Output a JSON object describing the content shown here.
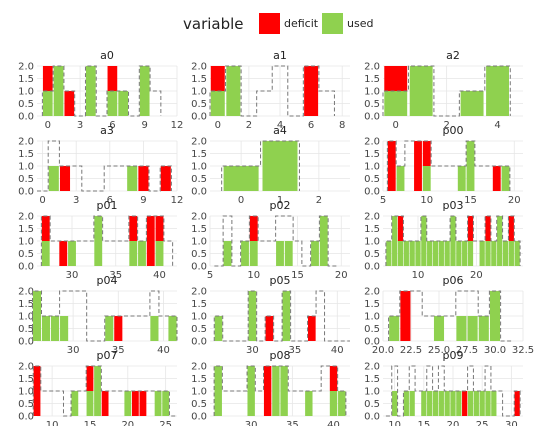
{
  "legend": {
    "title": "variable",
    "items": [
      {
        "label": "deficit",
        "color": "#ff0000"
      },
      {
        "label": "used",
        "color": "#8fd14f"
      }
    ],
    "placement": "top"
  },
  "colors": {
    "deficit": "#ff0000",
    "used": "#8fd14f",
    "capacity_line": "#777777"
  },
  "chart_data": [
    {
      "type": "bar",
      "title": "a0",
      "xlim": [
        -1,
        12
      ],
      "ylim": [
        0,
        2
      ],
      "yticks": [
        0,
        0.5,
        1,
        1.5,
        2
      ],
      "ytick_labels": [
        "0.0",
        "0.5",
        "1.0",
        "1.5",
        "2.0"
      ],
      "xticks": [
        0,
        3,
        6,
        9,
        12
      ],
      "xtick_labels": [
        "0",
        "3",
        "6",
        "9",
        "12"
      ],
      "x": [
        0,
        1,
        2,
        3,
        4,
        5,
        6,
        7,
        8,
        9,
        10
      ],
      "used": [
        1,
        2,
        0,
        0,
        2,
        0,
        1,
        1,
        0,
        2,
        0
      ],
      "deficit": [
        1,
        0,
        1,
        0,
        0,
        0,
        1,
        0,
        0,
        0,
        0
      ],
      "capacity": [
        1,
        2,
        1,
        0,
        2,
        0,
        1,
        1,
        0,
        2,
        1
      ]
    },
    {
      "type": "bar",
      "title": "a1",
      "xlim": [
        -0.5,
        8.5
      ],
      "ylim": [
        0,
        2
      ],
      "yticks": [
        0,
        0.5,
        1,
        1.5,
        2
      ],
      "ytick_labels": [
        "0.0",
        "0.5",
        "1.0",
        "1.5",
        "2.0"
      ],
      "xticks": [
        0,
        2,
        4,
        6,
        8
      ],
      "xtick_labels": [
        "0",
        "2",
        "4",
        "6",
        "8"
      ],
      "x": [
        0,
        1,
        2,
        3,
        4,
        5,
        6,
        7
      ],
      "used": [
        1,
        2,
        0,
        0,
        0,
        0,
        0,
        0
      ],
      "deficit": [
        1,
        0,
        0,
        0,
        0,
        0,
        2,
        0
      ],
      "capacity": [
        1,
        2,
        0,
        1,
        2,
        0,
        2,
        1
      ]
    },
    {
      "type": "bar",
      "title": "a2",
      "xlim": [
        -0.5,
        5
      ],
      "ylim": [
        0,
        2
      ],
      "yticks": [
        0,
        0.5,
        1,
        1.5,
        2
      ],
      "ytick_labels": [
        "0.0",
        "0.5",
        "1.0",
        "1.5",
        "2.0"
      ],
      "xticks": [
        0,
        2,
        4
      ],
      "xtick_labels": [
        "0",
        "2",
        "4"
      ],
      "x": [
        0,
        1,
        2,
        3,
        4
      ],
      "used": [
        1,
        2,
        0,
        1,
        2
      ],
      "deficit": [
        1,
        0,
        0,
        0,
        0
      ],
      "capacity": [
        1,
        2,
        0,
        1,
        2
      ]
    },
    {
      "type": "bar",
      "title": "a3",
      "xlim": [
        -0.5,
        12
      ],
      "ylim": [
        0,
        2
      ],
      "yticks": [
        0,
        0.5,
        1,
        1.5,
        2
      ],
      "ytick_labels": [
        "0.0",
        "0.5",
        "1.0",
        "1.5",
        "2.0"
      ],
      "xticks": [
        0,
        3,
        6,
        9,
        12
      ],
      "xtick_labels": [
        "0",
        "3",
        "6",
        "9",
        "12"
      ],
      "x": [
        0,
        1,
        2,
        3,
        4,
        5,
        6,
        7,
        8,
        9,
        10,
        11
      ],
      "used": [
        0,
        1,
        0,
        0,
        0,
        0,
        0,
        0,
        1,
        0,
        0,
        0
      ],
      "deficit": [
        0,
        0,
        1,
        0,
        0,
        0,
        0,
        0,
        0,
        1,
        0,
        1
      ],
      "capacity": [
        0,
        2,
        1,
        1,
        0,
        0,
        1,
        1,
        1,
        1,
        0,
        1
      ]
    },
    {
      "type": "bar",
      "title": "a4",
      "xlim": [
        -0.8,
        2.8
      ],
      "ylim": [
        0,
        2
      ],
      "yticks": [
        0,
        0.5,
        1,
        1.5,
        2
      ],
      "ytick_labels": [
        "0.0",
        "0.5",
        "1.0",
        "1.5",
        "2.0"
      ],
      "xticks": [
        0,
        1,
        2
      ],
      "xtick_labels": [
        "0",
        "1",
        "2"
      ],
      "x": [
        0,
        1
      ],
      "used": [
        1,
        2
      ],
      "deficit": [
        0,
        0
      ],
      "capacity": [
        1,
        2
      ]
    },
    {
      "type": "bar",
      "title": "p00",
      "xlim": [
        5,
        21
      ],
      "ylim": [
        0,
        2
      ],
      "yticks": [
        0,
        0.5,
        1,
        1.5,
        2
      ],
      "ytick_labels": [
        "0.0",
        "0.5",
        "1.0",
        "1.5",
        "2.0"
      ],
      "xticks": [
        5,
        10,
        15,
        20
      ],
      "xtick_labels": [
        "5",
        "10",
        "15",
        "20"
      ],
      "x": [
        6,
        7,
        8,
        9,
        10,
        11,
        12,
        13,
        14,
        15,
        16,
        17,
        18,
        19
      ],
      "used": [
        0,
        1,
        0,
        0,
        1,
        0,
        0,
        0,
        1,
        2,
        0,
        0,
        0,
        1
      ],
      "deficit": [
        2,
        0,
        0,
        2,
        1,
        0,
        0,
        0,
        0,
        0,
        0,
        0,
        1,
        0
      ],
      "capacity": [
        2,
        1,
        2,
        2,
        2,
        1,
        1,
        1,
        1,
        2,
        1,
        1,
        1,
        1
      ]
    },
    {
      "type": "bar",
      "title": "p01",
      "xlim": [
        26,
        42
      ],
      "ylim": [
        0,
        2
      ],
      "yticks": [
        0,
        0.5,
        1,
        1.5,
        2
      ],
      "ytick_labels": [
        "0.0",
        "0.5",
        "1.0",
        "1.5",
        "2.0"
      ],
      "xticks": [
        30,
        35,
        40
      ],
      "xtick_labels": [
        "30",
        "35",
        "40"
      ],
      "x": [
        27,
        28,
        29,
        30,
        31,
        32,
        33,
        34,
        35,
        36,
        37,
        38,
        39,
        40,
        41
      ],
      "used": [
        1,
        0,
        0,
        1,
        0,
        0,
        2,
        0,
        0,
        0,
        1,
        1,
        0,
        1,
        0
      ],
      "deficit": [
        1,
        0,
        1,
        0,
        0,
        0,
        0,
        0,
        0,
        0,
        1,
        0,
        2,
        1,
        0
      ],
      "capacity": [
        2,
        1,
        1,
        1,
        1,
        1,
        2,
        1,
        1,
        1,
        2,
        1,
        2,
        2,
        1
      ]
    },
    {
      "type": "bar",
      "title": "p02",
      "xlim": [
        5,
        21
      ],
      "ylim": [
        0,
        2
      ],
      "yticks": [
        0,
        0.5,
        1,
        1.5,
        2
      ],
      "ytick_labels": [
        "0.0",
        "0.5",
        "1.0",
        "1.5",
        "2.0"
      ],
      "xticks": [
        5,
        10,
        15,
        20
      ],
      "xtick_labels": [
        "5",
        "10",
        "15",
        "20"
      ],
      "x": [
        6,
        7,
        8,
        9,
        10,
        11,
        12,
        13,
        14,
        15,
        16,
        17,
        18,
        19
      ],
      "used": [
        0,
        1,
        0,
        1,
        1,
        0,
        0,
        1,
        1,
        0,
        0,
        1,
        2,
        0
      ],
      "deficit": [
        0,
        0,
        0,
        0,
        1,
        0,
        0,
        0,
        0,
        0,
        0,
        0,
        0,
        0
      ],
      "capacity": [
        0,
        2,
        0,
        1,
        2,
        1,
        1,
        2,
        2,
        1,
        0,
        1,
        2,
        0
      ]
    },
    {
      "type": "bar",
      "title": "p03",
      "xlim": [
        4,
        28
      ],
      "ylim": [
        0,
        2
      ],
      "yticks": [
        0,
        0.5,
        1,
        1.5,
        2
      ],
      "ytick_labels": [
        "0.0",
        "0.5",
        "1.0",
        "1.5",
        "2.0"
      ],
      "xticks": [
        10,
        20
      ],
      "xtick_labels": [
        "10",
        "20"
      ],
      "x": [
        5,
        6,
        7,
        8,
        9,
        10,
        11,
        12,
        13,
        14,
        15,
        16,
        17,
        18,
        19,
        20,
        21,
        22,
        23,
        24,
        25,
        26,
        27
      ],
      "used": [
        1,
        2,
        1,
        1,
        1,
        1,
        2,
        1,
        1,
        1,
        1,
        2,
        1,
        1,
        1,
        0,
        1,
        1,
        1,
        2,
        1,
        1,
        1
      ],
      "deficit": [
        0,
        0,
        1,
        0,
        0,
        0,
        0,
        0,
        0,
        0,
        0,
        0,
        0,
        0,
        1,
        0,
        0,
        1,
        0,
        0,
        0,
        1,
        0
      ],
      "capacity": [
        1,
        2,
        2,
        1,
        1,
        1,
        2,
        1,
        1,
        1,
        1,
        2,
        1,
        1,
        2,
        1,
        1,
        2,
        1,
        2,
        1,
        2,
        1
      ]
    },
    {
      "type": "bar",
      "title": "p04",
      "xlim": [
        26,
        41.5
      ],
      "ylim": [
        0,
        2
      ],
      "yticks": [
        0,
        0.5,
        1,
        1.5,
        2
      ],
      "ytick_labels": [
        "0.0",
        "0.5",
        "1.0",
        "1.5",
        "2.0"
      ],
      "xticks": [
        30,
        35,
        40
      ],
      "xtick_labels": [
        "30",
        "35",
        "40"
      ],
      "x": [
        26,
        27,
        28,
        29,
        30,
        31,
        32,
        33,
        34,
        35,
        36,
        37,
        38,
        39,
        40,
        41
      ],
      "used": [
        2,
        1,
        1,
        1,
        0,
        0,
        0,
        0,
        1,
        0,
        0,
        0,
        0,
        1,
        0,
        1
      ],
      "deficit": [
        0,
        0,
        0,
        0,
        0,
        0,
        0,
        0,
        0,
        1,
        0,
        0,
        0,
        0,
        0,
        0
      ],
      "capacity": [
        2,
        1,
        1,
        2,
        2,
        2,
        0,
        0,
        1,
        1,
        1,
        1,
        1,
        2,
        1,
        1
      ]
    },
    {
      "type": "bar",
      "title": "p05",
      "xlim": [
        25,
        41.5
      ],
      "ylim": [
        0,
        2
      ],
      "yticks": [
        0,
        0.5,
        1,
        1.5,
        2
      ],
      "ytick_labels": [
        "0.0",
        "0.5",
        "1.0",
        "1.5",
        "2.0"
      ],
      "xticks": [
        30,
        35,
        40
      ],
      "xtick_labels": [
        "30",
        "35",
        "40"
      ],
      "x": [
        26,
        27,
        28,
        29,
        30,
        31,
        32,
        33,
        34,
        35,
        36,
        37,
        38,
        39,
        40,
        41
      ],
      "used": [
        1,
        0,
        0,
        0,
        2,
        0,
        0,
        0,
        2,
        0,
        0,
        0,
        0,
        0,
        0,
        0
      ],
      "deficit": [
        0,
        0,
        0,
        0,
        0,
        0,
        1,
        0,
        0,
        0,
        0,
        1,
        0,
        0,
        0,
        0
      ],
      "capacity": [
        1,
        0,
        0,
        0,
        2,
        0,
        1,
        0,
        2,
        0,
        0,
        1,
        2,
        0,
        0,
        0
      ]
    },
    {
      "type": "bar",
      "title": "p06",
      "xlim": [
        20,
        32.5
      ],
      "ylim": [
        0,
        2
      ],
      "yticks": [
        0,
        0.5,
        1,
        1.5,
        2
      ],
      "ytick_labels": [
        "0.0",
        "0.5",
        "1.0",
        "1.5",
        "2.0"
      ],
      "xticks": [
        20,
        22.5,
        25,
        27.5,
        30,
        32.5
      ],
      "xtick_labels": [
        "20.0",
        "22.5",
        "25.0",
        "27.5",
        "30.0",
        "32.5"
      ],
      "x": [
        21,
        22,
        23,
        24,
        25,
        26,
        27,
        28,
        29,
        30,
        31
      ],
      "used": [
        1,
        0,
        0,
        0,
        1,
        0,
        1,
        1,
        1,
        2,
        0
      ],
      "deficit": [
        0,
        2,
        0,
        0,
        0,
        0,
        0,
        0,
        0,
        0,
        0
      ],
      "capacity": [
        1,
        2,
        2,
        1,
        1,
        1,
        2,
        2,
        1,
        2,
        0
      ]
    },
    {
      "type": "bar",
      "title": "p07",
      "xlim": [
        8,
        26.5
      ],
      "ylim": [
        0,
        2
      ],
      "yticks": [
        0,
        0.5,
        1,
        1.5,
        2
      ],
      "ytick_labels": [
        "0.0",
        "0.5",
        "1.0",
        "1.5",
        "2.0"
      ],
      "xticks": [
        10,
        15,
        20,
        25
      ],
      "xtick_labels": [
        "10",
        "15",
        "20",
        "25"
      ],
      "x": [
        8,
        9,
        10,
        11,
        12,
        13,
        14,
        15,
        16,
        17,
        18,
        19,
        20,
        21,
        22,
        23,
        24,
        25,
        26
      ],
      "used": [
        0,
        0,
        0,
        0,
        0,
        1,
        0,
        1,
        2,
        0,
        0,
        0,
        1,
        0,
        0,
        0,
        1,
        1,
        0
      ],
      "deficit": [
        2,
        0,
        0,
        0,
        0,
        0,
        0,
        1,
        0,
        1,
        0,
        0,
        0,
        1,
        1,
        0,
        0,
        0,
        0
      ],
      "capacity": [
        2,
        1,
        1,
        1,
        0,
        1,
        1,
        2,
        2,
        1,
        1,
        1,
        1,
        1,
        1,
        1,
        1,
        1,
        0
      ]
    },
    {
      "type": "bar",
      "title": "p08",
      "xlim": [
        25,
        42
      ],
      "ylim": [
        0,
        2
      ],
      "yticks": [
        0,
        0.5,
        1,
        1.5,
        2
      ],
      "ytick_labels": [
        "0.0",
        "0.5",
        "1.0",
        "1.5",
        "2.0"
      ],
      "xticks": [
        30,
        35,
        40
      ],
      "xtick_labels": [
        "30",
        "35",
        "40"
      ],
      "x": [
        26,
        27,
        28,
        29,
        30,
        31,
        32,
        33,
        34,
        35,
        36,
        37,
        38,
        39,
        40,
        41
      ],
      "used": [
        2,
        0,
        0,
        0,
        2,
        0,
        0,
        2,
        2,
        0,
        0,
        1,
        0,
        0,
        1,
        1
      ],
      "deficit": [
        0,
        0,
        0,
        0,
        0,
        0,
        2,
        0,
        0,
        0,
        0,
        0,
        0,
        0,
        1,
        0
      ],
      "capacity": [
        2,
        1,
        1,
        1,
        2,
        1,
        2,
        2,
        2,
        1,
        1,
        1,
        1,
        2,
        2,
        1
      ]
    },
    {
      "type": "bar",
      "title": "p09",
      "xlim": [
        8,
        32
      ],
      "ylim": [
        0,
        2
      ],
      "yticks": [
        0,
        0.5,
        1,
        1.5,
        2
      ],
      "ytick_labels": [
        "0.0",
        "0.5",
        "1.0",
        "1.5",
        "2.0"
      ],
      "xticks": [
        10,
        15,
        20,
        25,
        30
      ],
      "xtick_labels": [
        "10",
        "15",
        "20",
        "25",
        "30"
      ],
      "x": [
        9,
        10,
        11,
        12,
        13,
        14,
        15,
        16,
        17,
        18,
        19,
        20,
        21,
        22,
        23,
        24,
        25,
        26,
        27,
        28,
        29,
        30,
        31
      ],
      "used": [
        0,
        1,
        0,
        1,
        1,
        0,
        1,
        1,
        1,
        1,
        1,
        1,
        1,
        0,
        1,
        1,
        1,
        1,
        1,
        0,
        0,
        0,
        0
      ],
      "deficit": [
        0,
        0,
        0,
        0,
        0,
        0,
        0,
        0,
        0,
        0,
        0,
        0,
        0,
        1,
        0,
        0,
        0,
        0,
        0,
        0,
        0,
        0,
        1
      ],
      "capacity": [
        0,
        2,
        0,
        1,
        2,
        1,
        1,
        2,
        1,
        2,
        1,
        1,
        1,
        1,
        2,
        1,
        1,
        2,
        1,
        1,
        0,
        0,
        1
      ]
    }
  ]
}
